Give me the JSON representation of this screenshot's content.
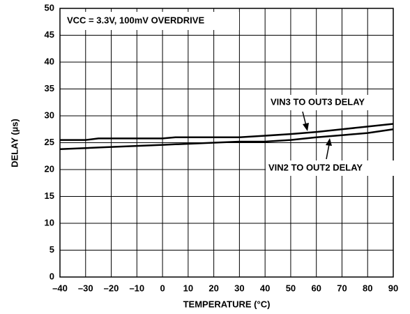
{
  "chart_data": {
    "type": "line",
    "annotation": "VCC = 3.3V, 100mV OVERDRIVE",
    "x_label": "TEMPERATURE (°C)",
    "y_label": "DELAY (µs)",
    "x": [
      -40,
      -30,
      -25,
      -10,
      0,
      5,
      20,
      30,
      40,
      50,
      60,
      70,
      80,
      90
    ],
    "series": [
      {
        "name": "VIN3 TO OUT3 DELAY",
        "color": "#000000",
        "values": [
          25.5,
          25.5,
          25.8,
          25.8,
          25.8,
          26.0,
          26.0,
          26.0,
          26.3,
          26.6,
          27.0,
          27.5,
          28.0,
          28.5
        ]
      },
      {
        "name": "VIN2 TO OUT2 DELAY",
        "color": "#000000",
        "values": [
          23.8,
          24.0,
          24.1,
          24.4,
          24.6,
          24.7,
          25.0,
          25.2,
          25.2,
          25.5,
          26.0,
          26.4,
          26.8,
          27.5
        ]
      }
    ],
    "xlim": [
      -40,
      90
    ],
    "xticks": [
      {
        "value": -40,
        "label": "–40"
      },
      {
        "value": -30,
        "label": "–30"
      },
      {
        "value": -20,
        "label": "–20"
      },
      {
        "value": -10,
        "label": "–10"
      },
      0,
      10,
      20,
      30,
      40,
      50,
      60,
      70,
      80,
      90
    ],
    "ylim": [
      0,
      50
    ],
    "yticks": [
      0,
      5,
      10,
      15,
      20,
      25,
      30,
      35,
      40,
      45,
      50
    ],
    "grid": true
  }
}
